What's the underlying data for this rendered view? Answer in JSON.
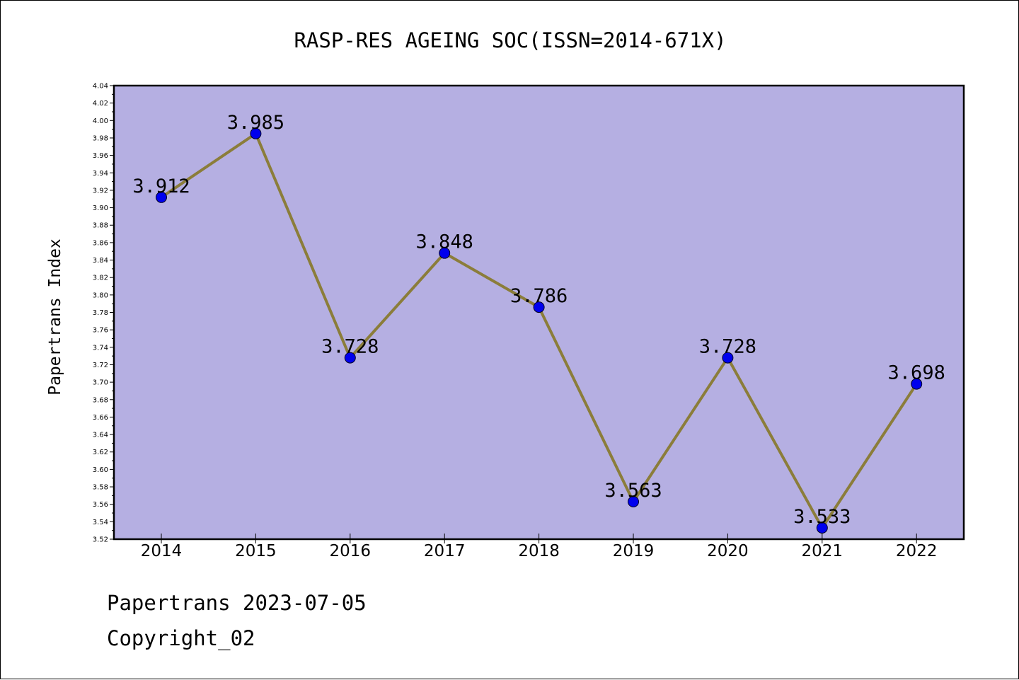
{
  "chart_data": {
    "type": "line",
    "title": "RASP-RES AGEING SOC(ISSN=2014-671X)",
    "ylabel": "Papertrans Index",
    "xlabel": "",
    "categories": [
      "2014",
      "2015",
      "2016",
      "2017",
      "2018",
      "2019",
      "2020",
      "2021",
      "2022"
    ],
    "series": [
      {
        "values": [
          3.912,
          3.985,
          3.728,
          3.848,
          3.786,
          3.563,
          3.728,
          3.533,
          3.698
        ],
        "labels": [
          "3.912",
          "3.985",
          "3.728",
          "3.848",
          "3.786",
          "3.563",
          "3.728",
          "3.533",
          "3.698"
        ]
      }
    ],
    "ylim": [
      3.52,
      4.04
    ],
    "ytick_step": 0.02,
    "ytick_labels": [
      "3.52",
      "3.54",
      "3.56",
      "3.58",
      "3.60",
      "3.62",
      "3.64",
      "3.66",
      "3.68",
      "3.70",
      "3.72",
      "3.74",
      "3.76",
      "3.78",
      "3.80",
      "3.82",
      "3.84",
      "3.86",
      "3.88",
      "3.90",
      "3.92",
      "3.94",
      "3.96",
      "3.98",
      "4.00",
      "4.02",
      "4.04"
    ],
    "grid": false,
    "legend": "none",
    "colors": {
      "plot_background": "#b5afe2",
      "line": "#8b7d3a",
      "marker": "#0000ee"
    }
  },
  "footer": {
    "line1": "Papertrans 2023-07-05",
    "line2": "Copyright_02"
  }
}
